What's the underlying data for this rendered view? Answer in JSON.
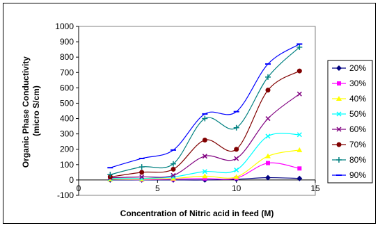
{
  "chart_data": {
    "type": "scatter",
    "title": "",
    "xlabel": "Concentration of Nitric acid in feed (M)",
    "ylabel_lines": [
      "Organic Phase Conductivity",
      "(micro S/cm)"
    ],
    "xlim": [
      0,
      15
    ],
    "ylim": [
      -100,
      1000
    ],
    "xticks": [
      0,
      5,
      10,
      15
    ],
    "yticks": [
      -100,
      0,
      100,
      200,
      300,
      400,
      500,
      600,
      700,
      800,
      900,
      1000
    ],
    "legend_position": "right",
    "grid": false,
    "smooth_lines": true,
    "x": [
      2,
      4,
      6,
      8,
      10,
      12,
      14
    ],
    "series": [
      {
        "name": "20%",
        "color": "#000080",
        "marker": "diamond",
        "values": [
          0,
          0,
          0,
          0,
          5,
          15,
          10
        ]
      },
      {
        "name": "30%",
        "color": "#FF00FF",
        "marker": "square",
        "values": [
          5,
          2,
          5,
          10,
          12,
          110,
          75
        ]
      },
      {
        "name": "40%",
        "color": "#FFFF00",
        "marker": "triangle",
        "values": [
          5,
          5,
          10,
          25,
          20,
          155,
          195
        ]
      },
      {
        "name": "50%",
        "color": "#00FFFF",
        "marker": "x",
        "values": [
          10,
          10,
          20,
          55,
          65,
          285,
          295
        ]
      },
      {
        "name": "60%",
        "color": "#800080",
        "marker": "x",
        "values": [
          15,
          20,
          30,
          155,
          140,
          400,
          560
        ]
      },
      {
        "name": "70%",
        "color": "#800000",
        "marker": "circle",
        "values": [
          20,
          50,
          70,
          260,
          200,
          585,
          710
        ]
      },
      {
        "name": "80%",
        "color": "#008080",
        "marker": "plus",
        "values": [
          35,
          85,
          105,
          400,
          340,
          670,
          865
        ]
      },
      {
        "name": "90%",
        "color": "#0000FF",
        "marker": "dash",
        "values": [
          80,
          140,
          195,
          430,
          445,
          755,
          885
        ]
      }
    ]
  }
}
